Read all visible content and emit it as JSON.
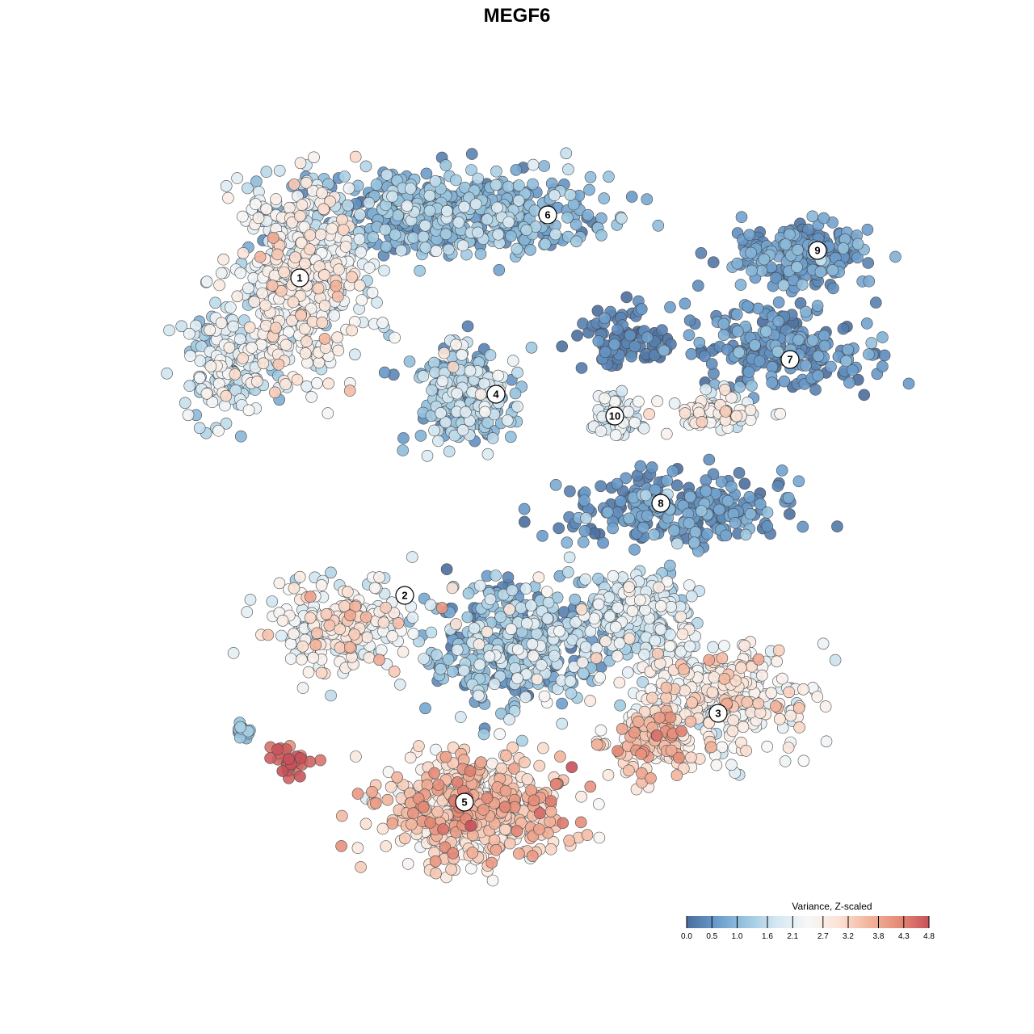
{
  "chart_data": {
    "type": "scatter",
    "title": "MEGF6",
    "point_style": {
      "stroke": "#4a4a4a",
      "opacity": 0.9
    },
    "clusters": [
      {
        "label": "1",
        "center": [
          371,
          344
        ],
        "spread": [
          80,
          115
        ],
        "n": 560,
        "level_mean": 2.2,
        "level_sd": 0.55
      },
      {
        "label": "2",
        "center": [
          420,
          775
        ],
        "spread": [
          90,
          55
        ],
        "n": 230,
        "level_mean": 2.4,
        "level_sd": 0.6
      },
      {
        "label": "3",
        "center": [
          889,
          860
        ],
        "spread": [
          110,
          70
        ],
        "n": 330,
        "level_mean": 2.5,
        "level_sd": 0.55
      },
      {
        "label": "4",
        "center": [
          580,
          490
        ],
        "spread": [
          60,
          60
        ],
        "n": 280,
        "level_mean": 1.2,
        "level_sd": 0.55
      },
      {
        "label": "5",
        "center": [
          590,
          1000
        ],
        "spread": [
          110,
          65
        ],
        "n": 520,
        "level_mean": 3.2,
        "level_sd": 0.55
      },
      {
        "label": "6",
        "center": [
          560,
          265
        ],
        "spread": [
          180,
          55
        ],
        "n": 520,
        "level_mean": 0.9,
        "level_sd": 0.45
      },
      {
        "label": "7",
        "center": [
          970,
          430
        ],
        "spread": [
          110,
          55
        ],
        "n": 230,
        "level_mean": 0.45,
        "level_sd": 0.3
      },
      {
        "label": "8",
        "center": [
          840,
          630
        ],
        "spread": [
          130,
          45
        ],
        "n": 260,
        "level_mean": 0.45,
        "level_sd": 0.35
      },
      {
        "label": "9",
        "center": [
          990,
          315
        ],
        "spread": [
          80,
          35
        ],
        "n": 200,
        "level_mean": 0.55,
        "level_sd": 0.3
      },
      {
        "label": "10",
        "center": [
          760,
          515
        ],
        "spread": [
          28,
          30
        ],
        "n": 60,
        "level_mean": 1.8,
        "level_sd": 0.35
      },
      {
        "label": "",
        "center": [
          640,
          800
        ],
        "spread": [
          110,
          75
        ],
        "n": 420,
        "level_mean": 1.1,
        "level_sd": 0.6
      },
      {
        "label": "",
        "center": [
          790,
          760
        ],
        "spread": [
          70,
          60
        ],
        "n": 220,
        "level_mean": 1.7,
        "level_sd": 0.5
      },
      {
        "label": "",
        "center": [
          800,
          920
        ],
        "spread": [
          60,
          40
        ],
        "n": 120,
        "level_mean": 3.3,
        "level_sd": 0.5
      },
      {
        "label": "",
        "center": [
          890,
          510
        ],
        "spread": [
          60,
          22
        ],
        "n": 80,
        "level_mean": 2.3,
        "level_sd": 0.4
      },
      {
        "label": "",
        "center": [
          280,
          450
        ],
        "spread": [
          60,
          70
        ],
        "n": 150,
        "level_mean": 1.8,
        "level_sd": 0.5
      },
      {
        "label": "",
        "center": [
          360,
          940
        ],
        "spread": [
          28,
          18
        ],
        "n": 35,
        "level_mean": 4.6,
        "level_sd": 0.2
      },
      {
        "label": "",
        "center": [
          300,
          905
        ],
        "spread": [
          14,
          10
        ],
        "n": 14,
        "level_mean": 1.0,
        "level_sd": 0.3
      },
      {
        "label": "",
        "center": [
          770,
          420
        ],
        "spread": [
          60,
          40
        ],
        "n": 90,
        "level_mean": 0.2,
        "level_sd": 0.2
      }
    ],
    "cluster_label_positions": [
      {
        "label": "1",
        "pos": [
          371,
          344
        ]
      },
      {
        "label": "2",
        "pos": [
          501,
          737
        ]
      },
      {
        "label": "3",
        "pos": [
          889,
          883
        ]
      },
      {
        "label": "4",
        "pos": [
          614,
          488
        ]
      },
      {
        "label": "5",
        "pos": [
          575,
          993
        ]
      },
      {
        "label": "6",
        "pos": [
          678,
          266
        ]
      },
      {
        "label": "7",
        "pos": [
          978,
          445
        ]
      },
      {
        "label": "8",
        "pos": [
          818,
          623
        ]
      },
      {
        "label": "9",
        "pos": [
          1012,
          310
        ]
      },
      {
        "label": "10",
        "pos": [
          761,
          515
        ]
      }
    ],
    "legend": {
      "title": "Variance, Z-scaled",
      "range": [
        0.0,
        4.8
      ],
      "ticks": [
        "0.0",
        "0.5",
        "1.0",
        "1.6",
        "2.1",
        "2.7",
        "3.2",
        "3.8",
        "4.3",
        "4.8"
      ],
      "colors": [
        "#4a6d9c",
        "#6a9ccc",
        "#9cc8e0",
        "#d6e8f2",
        "#f7f7f7",
        "#fbe3d6",
        "#f3b59d",
        "#e58c78",
        "#c8515a"
      ],
      "placement": "bottom-right"
    }
  }
}
